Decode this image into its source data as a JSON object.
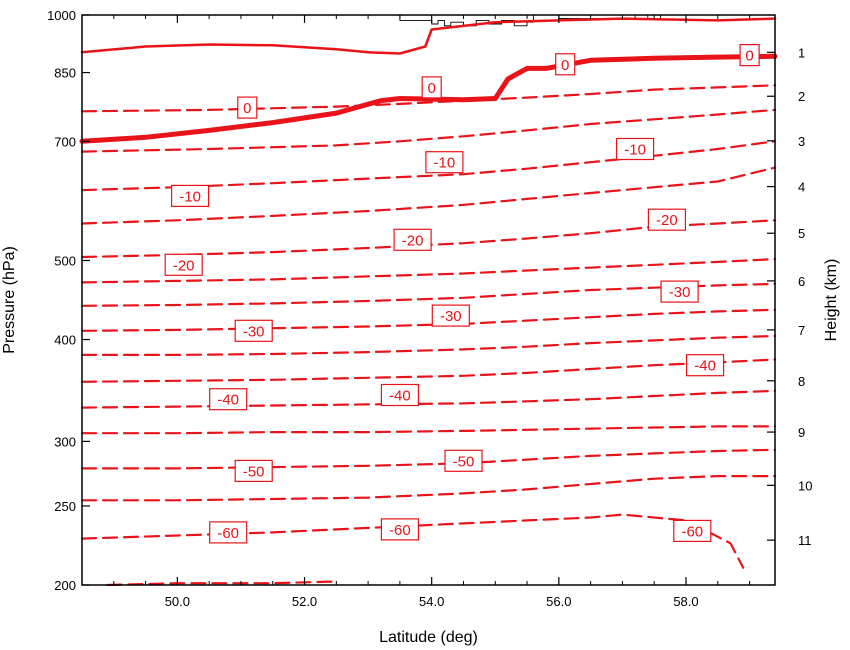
{
  "chart_data": {
    "type": "line",
    "title": "",
    "xlabel": "Latitude (deg)",
    "ylabel": "Pressure (hPa)",
    "y2label": "Height (km)",
    "xlim": [
      48.5,
      59.4
    ],
    "ylim": [
      1000,
      200
    ],
    "y_scale": "log",
    "x_ticks": [
      "50.0",
      "52.0",
      "54.0",
      "56.0",
      "58.0"
    ],
    "y_ticks": [
      "200",
      "250",
      "300",
      "400",
      "500",
      "700",
      "850",
      "1000"
    ],
    "y2_ticks": [
      "1",
      "2",
      "3",
      "4",
      "5",
      "6",
      "7",
      "8",
      "9",
      "10",
      "11"
    ],
    "y2_tick_pressures": [
      900,
      795,
      701,
      616,
      540,
      472,
      411,
      356,
      308,
      265,
      227
    ],
    "grid": false,
    "legend": "none",
    "line_color": "#e8141a",
    "terrain_color": "#000000",
    "series": [
      {
        "level": 0,
        "style": "solid-thick",
        "x": [
          48.5,
          49.5,
          50.5,
          51.5,
          52.5,
          53.2,
          53.5,
          54.5,
          55.0,
          55.2,
          55.5,
          55.8,
          56.5,
          57.5,
          58.5,
          59.4
        ],
        "y": [
          700,
          708,
          722,
          738,
          758,
          785,
          790,
          787,
          790,
          835,
          860,
          860,
          880,
          885,
          888,
          890
        ]
      },
      {
        "level": 0,
        "style": "solid",
        "x": [
          48.5,
          49.5,
          50.5,
          51.5,
          52.5,
          53.0,
          53.5,
          53.9,
          54.0,
          55.0,
          56.0,
          57.0,
          58.5,
          59.4
        ],
        "y": [
          900,
          915,
          920,
          918,
          908,
          900,
          897,
          915,
          960,
          980,
          985,
          990,
          985,
          990
        ]
      },
      {
        "level": -10,
        "style": "dashed",
        "x": [
          48.5,
          50.5,
          52.5,
          53.5,
          54.5,
          55.5,
          56.5,
          57.5,
          58.5,
          59.4
        ],
        "y": [
          762,
          765,
          772,
          778,
          785,
          792,
          800,
          810,
          815,
          820
        ]
      },
      {
        "level": -10,
        "style": "dashed",
        "x": [
          48.5,
          50.5,
          52.5,
          53.5,
          54.5,
          55.5,
          56.5,
          57.5,
          58.5,
          59.4
        ],
        "y": [
          680,
          685,
          692,
          700,
          710,
          722,
          735,
          745,
          755,
          765
        ]
      },
      {
        "level": -10,
        "style": "dashed",
        "x": [
          48.5,
          50.0,
          51.5,
          53.0,
          54.5,
          55.5,
          56.5,
          57.5,
          58.5,
          59.4
        ],
        "y": [
          610,
          615,
          622,
          630,
          638,
          648,
          660,
          672,
          685,
          700
        ]
      },
      {
        "level": -10,
        "style": "dashed",
        "x": [
          48.5,
          50.0,
          51.5,
          53.0,
          54.5,
          55.5,
          56.5,
          57.5,
          58.5,
          59.4
        ],
        "y": [
          555,
          560,
          567,
          575,
          585,
          595,
          605,
          615,
          625,
          650
        ]
      },
      {
        "level": -20,
        "style": "dashed",
        "x": [
          48.5,
          50.0,
          51.5,
          53.0,
          54.5,
          55.5,
          56.5,
          57.5,
          58.5,
          59.4
        ],
        "y": [
          505,
          508,
          512,
          518,
          525,
          532,
          540,
          550,
          555,
          560
        ]
      },
      {
        "level": -20,
        "style": "dashed",
        "x": [
          48.5,
          50.0,
          51.5,
          53.0,
          54.5,
          55.5,
          56.5,
          57.5,
          58.5,
          59.4
        ],
        "y": [
          470,
          472,
          474,
          478,
          482,
          486,
          490,
          494,
          498,
          502
        ]
      },
      {
        "level": -30,
        "style": "dashed",
        "x": [
          48.5,
          50.0,
          51.5,
          53.0,
          54.5,
          55.5,
          56.5,
          57.5,
          58.5,
          59.4
        ],
        "y": [
          440,
          441,
          443,
          446,
          450,
          455,
          460,
          463,
          466,
          468
        ]
      },
      {
        "level": -30,
        "style": "dashed",
        "x": [
          48.5,
          50.0,
          51.5,
          53.0,
          54.5,
          55.5,
          56.5,
          57.5,
          58.5,
          59.4
        ],
        "y": [
          410,
          411,
          413,
          415,
          418,
          422,
          426,
          430,
          433,
          435
        ]
      },
      {
        "level": -40,
        "style": "dashed",
        "x": [
          48.5,
          50.0,
          51.5,
          53.0,
          54.5,
          55.5,
          56.5,
          57.5,
          58.5,
          59.4
        ],
        "y": [
          383,
          383,
          384,
          386,
          389,
          392,
          396,
          399,
          402,
          404
        ]
      },
      {
        "level": -40,
        "style": "dashed",
        "x": [
          48.5,
          50.0,
          51.5,
          53.0,
          54.5,
          55.5,
          56.5,
          57.5,
          58.5,
          59.4
        ],
        "y": [
          355,
          356,
          357,
          359,
          361,
          364,
          368,
          372,
          375,
          378
        ]
      },
      {
        "level": -40,
        "style": "dashed",
        "x": [
          48.5,
          50.0,
          51.5,
          53.0,
          54.5,
          55.5,
          56.5,
          57.5,
          58.5,
          59.4
        ],
        "y": [
          330,
          331,
          332,
          333,
          334,
          336,
          338,
          341,
          344,
          346
        ]
      },
      {
        "level": -50,
        "style": "dashed",
        "x": [
          48.5,
          50.0,
          51.5,
          53.0,
          54.5,
          55.5,
          56.5,
          57.5,
          58.5,
          59.4
        ],
        "y": [
          307,
          307,
          308,
          308,
          309,
          310,
          311,
          312,
          313,
          313
        ]
      },
      {
        "level": -50,
        "style": "dashed",
        "x": [
          48.5,
          50.0,
          51.5,
          53.0,
          54.5,
          55.5,
          56.5,
          57.5,
          58.5,
          59.4
        ],
        "y": [
          278,
          278,
          279,
          280,
          282,
          285,
          288,
          290,
          292,
          293
        ]
      },
      {
        "level": -60,
        "style": "dashed",
        "x": [
          48.5,
          50.0,
          51.5,
          53.0,
          54.5,
          55.5,
          56.5,
          57.5,
          58.5,
          59.4
        ],
        "y": [
          254,
          254,
          255,
          256,
          259,
          262,
          266,
          270,
          272,
          272
        ]
      },
      {
        "level": -60,
        "style": "dashed",
        "x": [
          48.5,
          50.0,
          51.5,
          53.0,
          54.5,
          55.5,
          56.5,
          57.0,
          58.0,
          58.7,
          58.9
        ],
        "y": [
          228,
          230,
          232,
          235,
          238,
          240,
          242,
          244,
          240,
          225,
          210
        ]
      },
      {
        "level": -60,
        "style": "dashed",
        "x": [
          48.9,
          50.0,
          51.5,
          52.5
        ],
        "y": [
          200,
          201,
          201,
          202
        ]
      }
    ],
    "labels": [
      {
        "text": "-60",
        "x": 50.8,
        "y": 232
      },
      {
        "text": "-60",
        "x": 53.5,
        "y": 234
      },
      {
        "text": "-60",
        "x": 58.1,
        "y": 233
      },
      {
        "text": "-50",
        "x": 51.2,
        "y": 276
      },
      {
        "text": "-50",
        "x": 54.5,
        "y": 284
      },
      {
        "text": "-40",
        "x": 50.8,
        "y": 338
      },
      {
        "text": "-40",
        "x": 53.5,
        "y": 342
      },
      {
        "text": "-40",
        "x": 58.3,
        "y": 372
      },
      {
        "text": "-30",
        "x": 51.2,
        "y": 410
      },
      {
        "text": "-30",
        "x": 54.3,
        "y": 428
      },
      {
        "text": "-30",
        "x": 57.9,
        "y": 458
      },
      {
        "text": "-20",
        "x": 50.1,
        "y": 494
      },
      {
        "text": "-20",
        "x": 53.7,
        "y": 530
      },
      {
        "text": "-20",
        "x": 57.7,
        "y": 561
      },
      {
        "text": "-10",
        "x": 50.2,
        "y": 600
      },
      {
        "text": "-10",
        "x": 54.2,
        "y": 660
      },
      {
        "text": "-10",
        "x": 57.2,
        "y": 685
      },
      {
        "text": "0",
        "x": 51.1,
        "y": 770
      },
      {
        "text": "0",
        "x": 54.0,
        "y": 815
      },
      {
        "text": "0",
        "x": 56.1,
        "y": 870
      },
      {
        "text": "0",
        "x": 59.0,
        "y": 893
      }
    ],
    "terrain": {
      "x": [
        48.5,
        53.5,
        53.5,
        54.0,
        54.0,
        54.1,
        54.1,
        54.2,
        54.2,
        54.3,
        54.3,
        54.5,
        54.5,
        54.7,
        54.7,
        54.9,
        54.9,
        55.1,
        55.1,
        55.3,
        55.3,
        55.5,
        55.5,
        55.6,
        55.6,
        56.0,
        56.0,
        57.2,
        57.2,
        57.4,
        57.4,
        57.6,
        57.6,
        59.4
      ],
      "y": [
        1000,
        1000,
        985,
        985,
        975,
        975,
        985,
        985,
        970,
        970,
        980,
        980,
        970,
        970,
        985,
        985,
        975,
        975,
        985,
        985,
        970,
        970,
        980,
        980,
        1000,
        1000,
        990,
        990,
        1000,
        1000,
        990,
        990,
        1000,
        1000
      ]
    }
  }
}
